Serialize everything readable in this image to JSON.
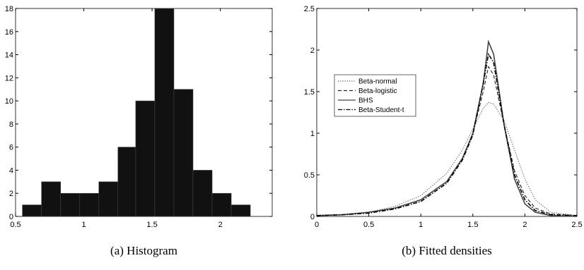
{
  "chart_data": [
    {
      "type": "histogram",
      "caption": "(a) Histogram",
      "color": "#111111",
      "bins": [
        0.55,
        0.69,
        0.83,
        0.97,
        1.11,
        1.25,
        1.38,
        1.52,
        1.66,
        1.8,
        1.94,
        2.08,
        2.22
      ],
      "values": [
        1,
        3,
        2,
        2,
        3,
        6,
        10,
        18,
        11,
        4,
        2,
        1
      ],
      "xlim": [
        0.5,
        2.38
      ],
      "xticks": [
        0.5,
        1,
        1.5,
        2
      ],
      "ylim": [
        0,
        18
      ],
      "yticks": [
        0,
        2,
        4,
        6,
        8,
        10,
        12,
        14,
        16,
        18
      ]
    },
    {
      "type": "line",
      "caption": "(b) Fitted densities",
      "legend": "upper left",
      "x": [
        0,
        0.25,
        0.5,
        0.75,
        1,
        1.25,
        1.4,
        1.5,
        1.6,
        1.65,
        1.7,
        1.8,
        1.9,
        2,
        2.1,
        2.25,
        2.5
      ],
      "series": [
        {
          "name": "Beta-normal",
          "color": "#555555",
          "style": "dotted",
          "values": [
            0.01,
            0.02,
            0.05,
            0.12,
            0.25,
            0.52,
            0.8,
            1.05,
            1.3,
            1.37,
            1.35,
            1.15,
            0.8,
            0.45,
            0.2,
            0.05,
            0.01
          ]
        },
        {
          "name": "Beta-logistic",
          "color": "#222222",
          "style": "dashed",
          "values": [
            0.01,
            0.02,
            0.05,
            0.1,
            0.2,
            0.42,
            0.7,
            1.0,
            1.5,
            1.8,
            1.7,
            1.1,
            0.55,
            0.25,
            0.1,
            0.03,
            0.01
          ]
        },
        {
          "name": "BHS",
          "color": "#444444",
          "style": "solid",
          "values": [
            0.01,
            0.02,
            0.05,
            0.1,
            0.2,
            0.42,
            0.7,
            1.0,
            1.6,
            2.1,
            1.95,
            1.1,
            0.45,
            0.15,
            0.05,
            0.01,
            0
          ]
        },
        {
          "name": "Beta-Student-t",
          "color": "#000000",
          "style": "dashdot",
          "values": [
            0.01,
            0.02,
            0.04,
            0.09,
            0.18,
            0.4,
            0.68,
            0.98,
            1.6,
            1.95,
            1.85,
            1.1,
            0.5,
            0.2,
            0.07,
            0.02,
            0.01
          ]
        }
      ],
      "xlim": [
        0,
        2.5
      ],
      "xticks": [
        0,
        0.5,
        1,
        1.5,
        2,
        2.5
      ],
      "ylim": [
        0,
        2.5
      ],
      "yticks": [
        0,
        0.5,
        1,
        1.5,
        2,
        2.5
      ]
    }
  ]
}
